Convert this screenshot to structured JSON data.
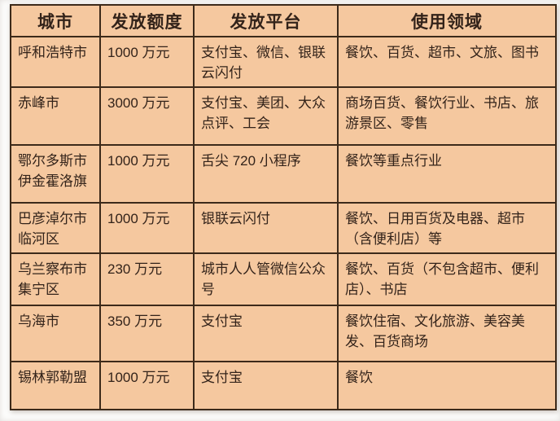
{
  "chart_data": {
    "type": "table",
    "columns": [
      "城市",
      "发放额度",
      "发放平台",
      "使用领域"
    ],
    "rows": [
      [
        "呼和浩特市",
        "1000 万元",
        "支付宝、微信、银联云闪付",
        "餐饮、百货、超市、文旅、图书"
      ],
      [
        "赤峰市",
        "3000 万元",
        "支付宝、美团、大众点评、工会",
        "商场百货、餐饮行业、书店、旅游景区、零售"
      ],
      [
        "鄂尔多斯市伊金霍洛旗",
        "1000 万元",
        "舌尖 720 小程序",
        "餐饮等重点行业"
      ],
      [
        "巴彦淖尔市临河区",
        "1000 万元",
        "银联云闪付",
        "餐饮、日用百货及电器、超市（含便利店）等"
      ],
      [
        "乌兰察布市集宁区",
        "230 万元",
        "城市人人管微信公众号",
        "餐饮、百货（不包含超市、便利店）、书店"
      ],
      [
        "乌海市",
        "350 万元",
        "支付宝",
        "餐饮住宿、文化旅游、美容美发、百货商场"
      ],
      [
        "锡林郭勒盟",
        "1000 万元",
        "支付宝",
        "餐饮"
      ]
    ]
  },
  "colors": {
    "page_bg": "#fdfdfc",
    "table_bg": "#f5c89f",
    "border": "#3c2a1a",
    "text": "#33231a"
  }
}
